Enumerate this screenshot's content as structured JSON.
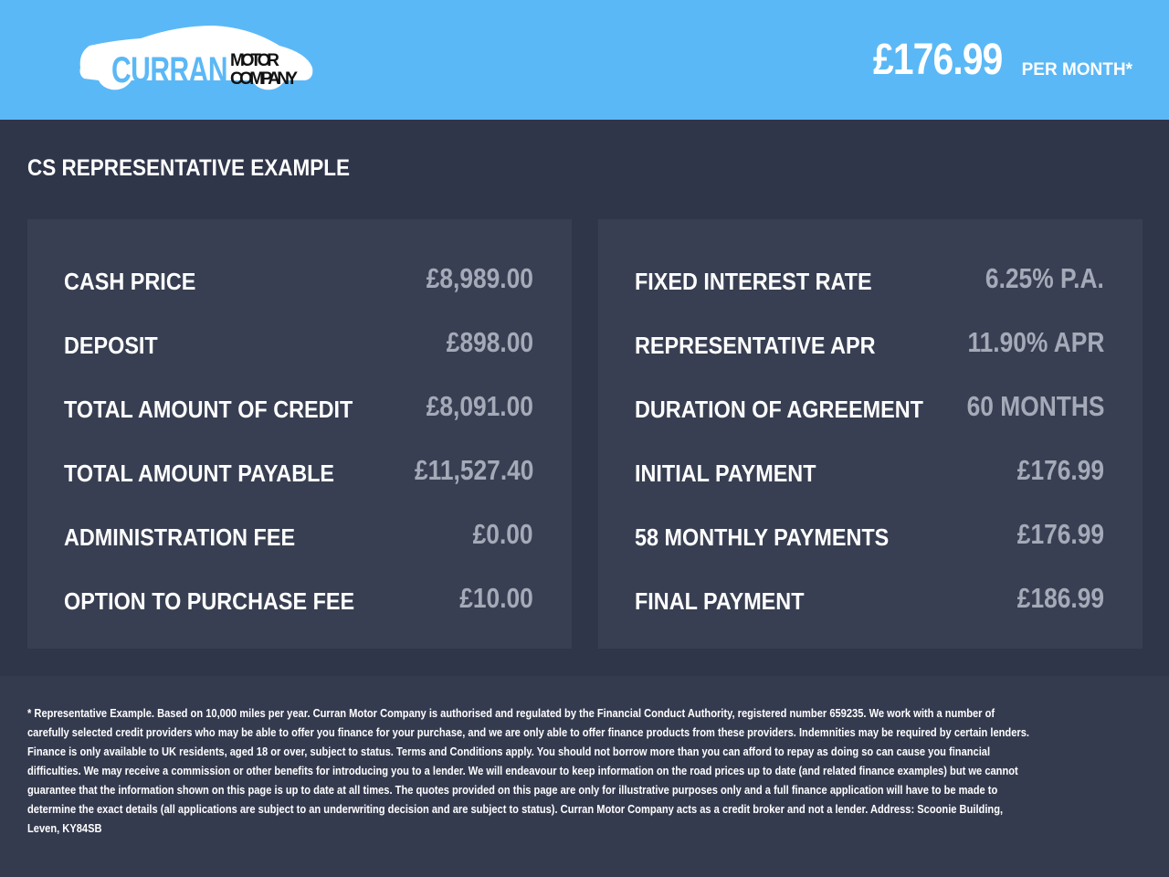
{
  "header": {
    "logo_text": "CURRAN MOTOR COMPANY",
    "price": "£176.99",
    "per_month": "PER MONTH*"
  },
  "title": "CS REPRESENTATIVE EXAMPLE",
  "left": [
    {
      "label": "CASH PRICE",
      "value": "£8,989.00"
    },
    {
      "label": "DEPOSIT",
      "value": "£898.00"
    },
    {
      "label": "TOTAL AMOUNT OF CREDIT",
      "value": "£8,091.00"
    },
    {
      "label": "TOTAL AMOUNT PAYABLE",
      "value": "£11,527.40"
    },
    {
      "label": "ADMINISTRATION FEE",
      "value": "£0.00"
    },
    {
      "label": "OPTION TO PURCHASE FEE",
      "value": "£10.00"
    }
  ],
  "right": [
    {
      "label": "FIXED INTEREST RATE",
      "value": "6.25% P.A."
    },
    {
      "label": "REPRESENTATIVE APR",
      "value": "11.90% APR"
    },
    {
      "label": "DURATION OF AGREEMENT",
      "value": "60 MONTHS"
    },
    {
      "label": "INITIAL PAYMENT",
      "value": "£176.99"
    },
    {
      "label": "58 MONTHLY PAYMENTS",
      "value": "£176.99"
    },
    {
      "label": "FINAL PAYMENT",
      "value": "£186.99"
    }
  ],
  "disclaimer": "* Representative Example. Based on 10,000 miles per year. Curran Motor Company is authorised and regulated by the Financial Conduct Authority, registered number 659235. We work with a number of carefully selected credit providers who may be able to offer you finance for your purchase, and we are only able to offer finance products from these providers. Indemnities may be required by certain lenders. Finance is only available to UK residents, aged 18 or over, subject to status. Terms and Conditions apply. You should not borrow more than you can afford to repay as doing so can cause you financial difficulties. We may receive a commission or other benefits for introducing you to a lender. We will endeavour to keep information on the road prices up to date (and related finance examples) but we cannot guarantee that the information shown on this page is up to date at all times. The quotes provided on this page are only for illustrative purposes only and a full finance application will have to be made to determine the exact details (all applications are subject to an underwriting decision and are subject to status). Curran Motor Company acts as a credit broker and not a lender. Address: Scoonie Building, Leven, KY84SB",
  "colors": {
    "header": "#5bb8f6",
    "background": "#30364a",
    "panel": "#383f52",
    "value": "#a5aab8"
  }
}
